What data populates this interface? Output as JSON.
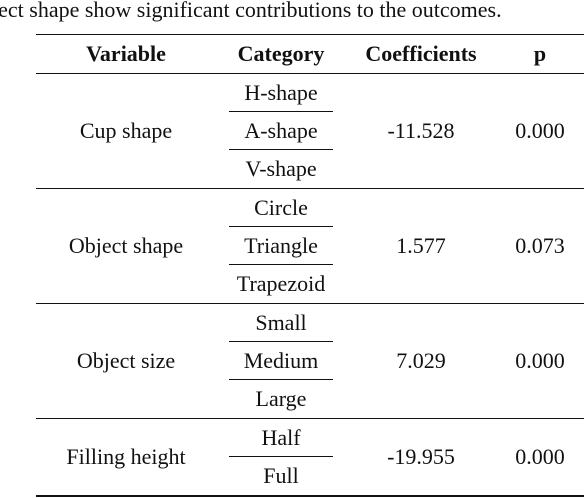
{
  "caption": "ject shape show significant contributions to the outcomes.",
  "headers": [
    "Variable",
    "Category",
    "Coefficients",
    "p"
  ],
  "rows": [
    {
      "variable": "Cup shape",
      "categories": [
        "H-shape",
        "A-shape",
        "V-shape"
      ],
      "coefficient": "-11.528",
      "p": "0.000"
    },
    {
      "variable": "Object shape",
      "categories": [
        "Circle",
        "Triangle",
        "Trapezoid"
      ],
      "coefficient": "1.577",
      "p": "0.073"
    },
    {
      "variable": "Object size",
      "categories": [
        "Small",
        "Medium",
        "Large"
      ],
      "coefficient": "7.029",
      "p": "0.000"
    },
    {
      "variable": "Filling height",
      "categories": [
        "Half",
        "Full"
      ],
      "coefficient": "-19.955",
      "p": "0.000"
    }
  ]
}
